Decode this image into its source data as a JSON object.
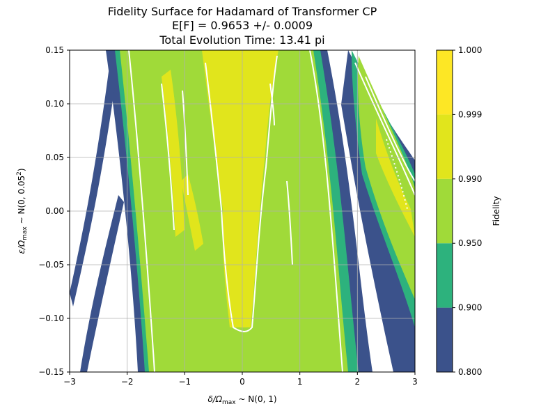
{
  "chart_data": {
    "type": "heatmap",
    "title_lines": [
      "Fidelity Surface for Hadamard of Transformer CP",
      "E[F] = 0.9653 +/- 0.0009",
      "Total Evolution Time: 13.41 pi"
    ],
    "xlabel_main": "δ/Ω",
    "xlabel_sub": "max",
    "xlabel_tail": " ~ N(0, 1)",
    "ylabel_main": "ε/Ω",
    "ylabel_sub": "max",
    "ylabel_tail": " ~ N(0, 0.05",
    "ylabel_sup": "2",
    "ylabel_close": ")",
    "xlim": [
      -3,
      3
    ],
    "ylim": [
      -0.15,
      0.15
    ],
    "xticks": [
      "−3",
      "−2",
      "−1",
      "0",
      "1",
      "2",
      "3"
    ],
    "yticks": [
      "−0.15",
      "−0.10",
      "−0.05",
      "0.00",
      "0.05",
      "0.10",
      "0.15"
    ],
    "grid": true,
    "colorbar": {
      "label": "Fidelity",
      "levels": [
        "0.800",
        "0.900",
        "0.950",
        "0.990",
        "0.999",
        "1.000"
      ],
      "colors": [
        "#3b528b",
        "#2db27d",
        "#a0da39",
        "#e1e51c",
        "#fde725"
      ]
    },
    "contour_color": "#ffffff",
    "below_min_color": "#ffffff"
  }
}
